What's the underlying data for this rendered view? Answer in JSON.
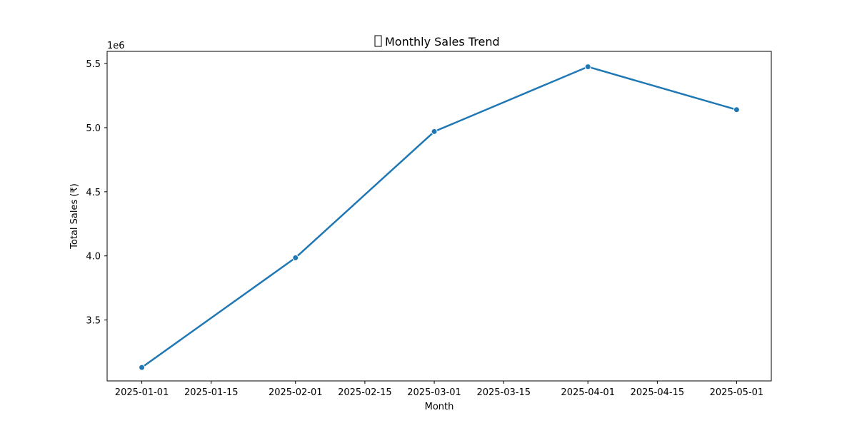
{
  "chart_data": {
    "type": "line",
    "title": "Monthly Sales Trend",
    "title_icon": "chart-icon",
    "xlabel": "Month",
    "ylabel": "Total Sales (₹)",
    "y_offset_label": "1e6",
    "x": [
      "2025-01-01",
      "2025-02-01",
      "2025-03-01",
      "2025-04-01",
      "2025-05-01"
    ],
    "series": [
      {
        "values": [
          3130000,
          3985000,
          4970000,
          5475000,
          5140000
        ],
        "color": "#1f77b4"
      }
    ],
    "x_ticks": [
      "2025-01-01",
      "2025-01-15",
      "2025-02-01",
      "2025-02-15",
      "2025-03-01",
      "2025-03-15",
      "2025-04-01",
      "2025-04-15",
      "2025-05-01"
    ],
    "y_ticks": [
      3500000,
      4000000,
      4500000,
      5000000,
      5500000
    ],
    "y_tick_labels": [
      "3.5",
      "4.0",
      "4.5",
      "5.0",
      "5.5"
    ],
    "xlim": [
      "2024-12-25",
      "2025-05-08"
    ],
    "ylim": [
      3025000,
      5595000
    ],
    "grid": false,
    "legend": "none"
  }
}
